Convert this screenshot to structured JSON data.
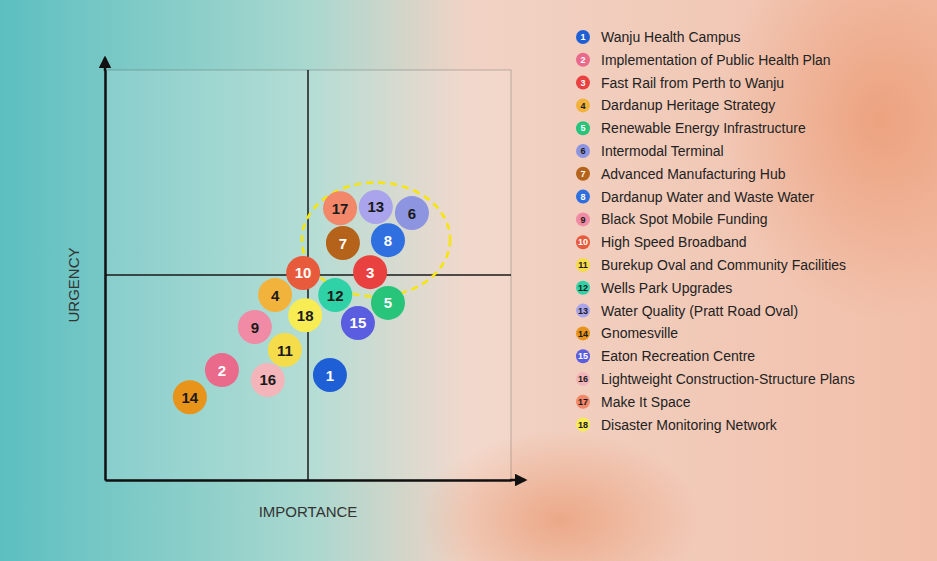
{
  "chart_data": {
    "type": "scatter",
    "x_label": "IMPORTANCE",
    "y_label": "URGENCY",
    "xlim": [
      0,
      10
    ],
    "ylim": [
      0,
      10
    ],
    "tick_labels": false,
    "legend": "right",
    "labels": [
      "1",
      "2",
      "3",
      "4",
      "5",
      "6",
      "7",
      "8",
      "9",
      "10",
      "11",
      "12",
      "13",
      "14",
      "15",
      "16",
      "17",
      "18"
    ],
    "categories": [
      "Wanju Health Campus",
      "Implementation of Public Health Plan",
      "Fast Rail from Perth to Wanju",
      "Dardanup Heritage Strategy",
      "Renewable Energy Infrastructure",
      "Intermodal Terminal",
      "Advanced Manufacturing Hub",
      "Dardanup Water and Waste Water",
      "Black Spot Mobile Funding",
      "High Speed Broadband",
      "Burekup Oval and Community Facilities",
      "Wells Park Upgrades",
      "Water Quality (Pratt Road Oval)",
      "Gnomesville",
      "Eaton Recreation Centre",
      "Lightweight Construction-Structure Plans",
      "Make It Space",
      "Disaster Monitoring Network"
    ],
    "x": [
      5.54,
      2.88,
      6.53,
      4.19,
      6.97,
      7.56,
      5.86,
      6.97,
      3.69,
      4.88,
      4.43,
      5.67,
      6.67,
      2.09,
      6.23,
      4.01,
      5.79,
      4.93
    ],
    "values": [
      2.56,
      2.68,
      5.07,
      4.51,
      4.32,
      6.51,
      5.78,
      5.85,
      3.73,
      5.05,
      3.17,
      4.51,
      6.66,
      2.02,
      3.83,
      2.44,
      6.63,
      4.02
    ],
    "colors": [
      "#1f5fd6",
      "#ea6a8c",
      "#e8413f",
      "#f2b33d",
      "#27c47a",
      "#8d95e0",
      "#b5621a",
      "#2f6fe0",
      "#f08aa5",
      "#e85a3c",
      "#f5dc4a",
      "#2fd1a6",
      "#a9a4ec",
      "#e8941a",
      "#5b5de0",
      "#f3b5b9",
      "#f2876a",
      "#f8ec55"
    ]
  }
}
